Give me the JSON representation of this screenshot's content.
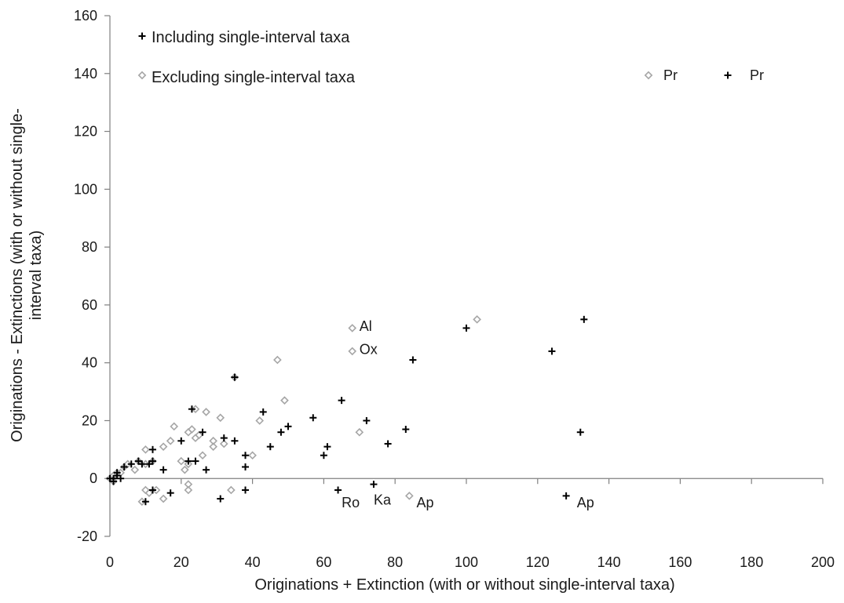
{
  "chart_data": {
    "type": "scatter",
    "title": "",
    "xlabel": "Originations + Extinction (with or without single-interval taxa)",
    "ylabel_line1": "Originations - Extinctions (with or without single-",
    "ylabel_line2": "interval taxa)",
    "xlim": [
      0,
      200
    ],
    "ylim": [
      -20,
      160
    ],
    "x_ticks": [
      0,
      20,
      40,
      60,
      80,
      100,
      120,
      140,
      160,
      180,
      200
    ],
    "y_ticks": [
      -20,
      0,
      20,
      40,
      60,
      80,
      100,
      120,
      140,
      160
    ],
    "grid": false,
    "legend_placement": "top-left",
    "series": [
      {
        "name": "Including single-interval taxa",
        "marker": "plus",
        "color": "#000000",
        "points": [
          [
            0,
            0
          ],
          [
            1,
            0
          ],
          [
            1,
            -1
          ],
          [
            2,
            1
          ],
          [
            2,
            2
          ],
          [
            3,
            0
          ],
          [
            4,
            4
          ],
          [
            6,
            5
          ],
          [
            8,
            6
          ],
          [
            9,
            5
          ],
          [
            10,
            -8
          ],
          [
            11,
            5
          ],
          [
            12,
            6
          ],
          [
            12,
            10
          ],
          [
            12,
            -4
          ],
          [
            15,
            3
          ],
          [
            17,
            -5
          ],
          [
            20,
            13
          ],
          [
            22,
            6
          ],
          [
            23,
            24
          ],
          [
            24,
            6
          ],
          [
            26,
            16
          ],
          [
            27,
            3
          ],
          [
            31,
            -7
          ],
          [
            32,
            14
          ],
          [
            35,
            13
          ],
          [
            35,
            35
          ],
          [
            38,
            8
          ],
          [
            38,
            4
          ],
          [
            38,
            -4
          ],
          [
            43,
            23
          ],
          [
            45,
            11
          ],
          [
            48,
            16
          ],
          [
            50,
            18
          ],
          [
            57,
            21
          ],
          [
            60,
            8
          ],
          [
            61,
            11
          ],
          [
            64,
            -4
          ],
          [
            65,
            27
          ],
          [
            72,
            20
          ],
          [
            74,
            -2
          ],
          [
            78,
            12
          ],
          [
            83,
            17
          ],
          [
            85,
            41
          ],
          [
            100,
            52
          ],
          [
            124,
            44
          ],
          [
            128,
            -6
          ],
          [
            132,
            16
          ],
          [
            133,
            55
          ]
        ]
      },
      {
        "name": "Excluding single-interval taxa",
        "marker": "diamond",
        "color": "#a6a6a6",
        "points": [
          [
            0,
            0
          ],
          [
            1,
            1
          ],
          [
            1,
            -1
          ],
          [
            2,
            2
          ],
          [
            3,
            2
          ],
          [
            4,
            4
          ],
          [
            5,
            5
          ],
          [
            7,
            3
          ],
          [
            8,
            6
          ],
          [
            9,
            -8
          ],
          [
            10,
            5
          ],
          [
            10,
            10
          ],
          [
            10,
            -4
          ],
          [
            11,
            -5
          ],
          [
            12,
            6
          ],
          [
            13,
            -4
          ],
          [
            15,
            11
          ],
          [
            15,
            -7
          ],
          [
            17,
            13
          ],
          [
            18,
            18
          ],
          [
            20,
            6
          ],
          [
            21,
            3
          ],
          [
            22,
            5
          ],
          [
            22,
            16
          ],
          [
            22,
            -2
          ],
          [
            22,
            -4
          ],
          [
            23,
            17
          ],
          [
            24,
            14
          ],
          [
            24,
            24
          ],
          [
            25,
            15
          ],
          [
            26,
            8
          ],
          [
            27,
            23
          ],
          [
            29,
            13
          ],
          [
            29,
            11
          ],
          [
            31,
            21
          ],
          [
            32,
            12
          ],
          [
            34,
            -4
          ],
          [
            35,
            35
          ],
          [
            40,
            8
          ],
          [
            42,
            20
          ],
          [
            47,
            41
          ],
          [
            49,
            27
          ],
          [
            68,
            52
          ],
          [
            68,
            44
          ],
          [
            70,
            16
          ],
          [
            84,
            -6
          ],
          [
            103,
            55
          ]
        ]
      }
    ],
    "annotations": [
      {
        "text": "Al",
        "x": 70,
        "y": 51
      },
      {
        "text": "Ox",
        "x": 70,
        "y": 43
      },
      {
        "text": "Ro",
        "x": 65,
        "y": -10
      },
      {
        "text": "Ka",
        "x": 74,
        "y": -9
      },
      {
        "text": "Ap",
        "x": 86,
        "y": -10
      },
      {
        "text": "Ap",
        "x": 131,
        "y": -10
      }
    ],
    "extra_legend": [
      {
        "marker": "diamond",
        "color": "#a6a6a6",
        "label": "Pr"
      },
      {
        "marker": "plus",
        "color": "#000000",
        "label": "Pr"
      }
    ]
  }
}
